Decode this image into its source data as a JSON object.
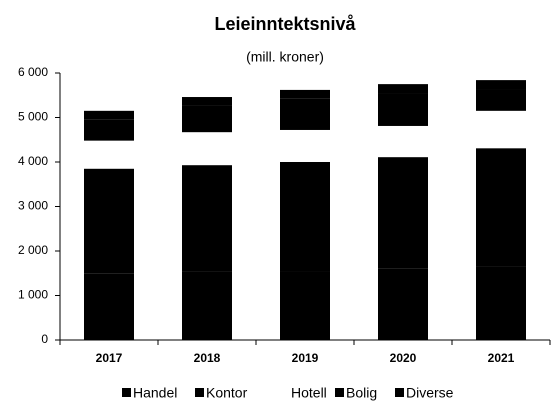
{
  "chart_data": {
    "type": "stacked_bar",
    "title": "Leieinntektsnivå",
    "subtitle": "(mill. kroner)",
    "categories": [
      "2017",
      "2018",
      "2019",
      "2020",
      "2021"
    ],
    "series": [
      {
        "name": "Handel",
        "color": "#000000",
        "values": [
          1500,
          1530,
          1550,
          1600,
          1650
        ]
      },
      {
        "name": "Kontor",
        "color": "#000000",
        "values": [
          2350,
          2400,
          2450,
          2510,
          2660
        ]
      },
      {
        "name": "Hotell",
        "color": "#ffffff",
        "values": [
          630,
          740,
          720,
          700,
          840
        ]
      },
      {
        "name": "Bolig",
        "color": "#000000",
        "values": [
          470,
          590,
          700,
          740,
          490
        ]
      },
      {
        "name": "Diverse",
        "color": "#000000",
        "values": [
          200,
          200,
          200,
          200,
          200
        ]
      }
    ],
    "ylim": [
      0,
      6000
    ],
    "yticks": [
      0,
      {
        "value": 1000,
        "label": "1 000"
      },
      {
        "value": 2000,
        "label": "2 000"
      },
      {
        "value": 3000,
        "label": "3 000"
      },
      {
        "value": 4000,
        "label": "4 000"
      },
      {
        "value": 5000,
        "label": "5 000"
      },
      {
        "value": 6000,
        "label": "6 000"
      }
    ],
    "grid": false,
    "legend": "bottom"
  }
}
